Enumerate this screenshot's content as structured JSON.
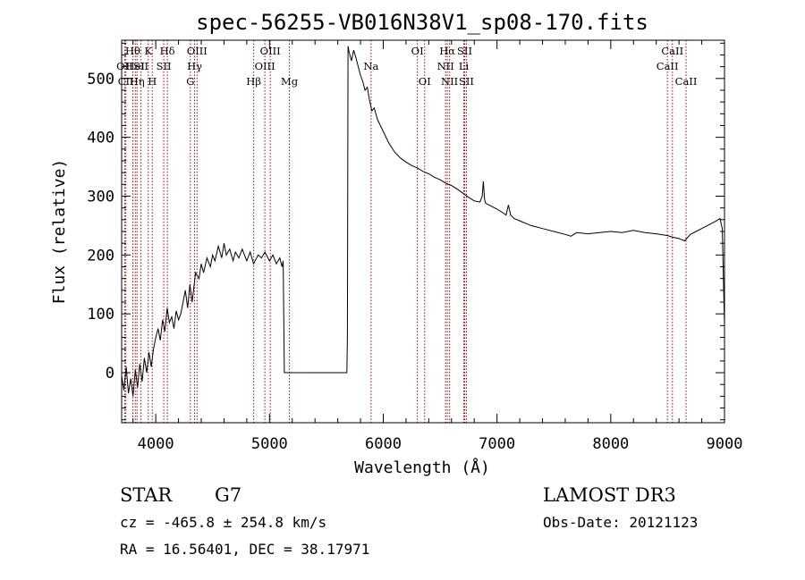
{
  "chart_data": {
    "type": "line",
    "title": "spec-56255-VB016N38V1_sp08-170.fits",
    "xlabel": "Wavelength (Å)",
    "ylabel": "Flux (relative)",
    "xlim": [
      3700,
      9000
    ],
    "ylim": [
      -85,
      565
    ],
    "xticks": [
      4000,
      5000,
      6000,
      7000,
      8000,
      9000
    ],
    "yticks": [
      0,
      100,
      200,
      300,
      400,
      500
    ],
    "spectrum": [
      [
        3700,
        -5
      ],
      [
        3720,
        -30
      ],
      [
        3740,
        10
      ],
      [
        3760,
        -35
      ],
      [
        3780,
        -10
      ],
      [
        3800,
        -40
      ],
      [
        3820,
        5
      ],
      [
        3840,
        -25
      ],
      [
        3860,
        15
      ],
      [
        3880,
        -15
      ],
      [
        3900,
        25
      ],
      [
        3920,
        0
      ],
      [
        3940,
        35
      ],
      [
        3960,
        10
      ],
      [
        3980,
        40
      ],
      [
        4000,
        60
      ],
      [
        4020,
        75
      ],
      [
        4040,
        55
      ],
      [
        4060,
        90
      ],
      [
        4080,
        70
      ],
      [
        4100,
        110
      ],
      [
        4120,
        85
      ],
      [
        4140,
        95
      ],
      [
        4160,
        75
      ],
      [
        4180,
        105
      ],
      [
        4200,
        90
      ],
      [
        4220,
        100
      ],
      [
        4240,
        120
      ],
      [
        4260,
        140
      ],
      [
        4280,
        110
      ],
      [
        4300,
        150
      ],
      [
        4320,
        120
      ],
      [
        4350,
        170
      ],
      [
        4380,
        160
      ],
      [
        4400,
        185
      ],
      [
        4420,
        170
      ],
      [
        4450,
        195
      ],
      [
        4480,
        180
      ],
      [
        4500,
        200
      ],
      [
        4520,
        190
      ],
      [
        4550,
        215
      ],
      [
        4580,
        195
      ],
      [
        4600,
        220
      ],
      [
        4620,
        200
      ],
      [
        4650,
        210
      ],
      [
        4680,
        190
      ],
      [
        4700,
        205
      ],
      [
        4730,
        195
      ],
      [
        4760,
        210
      ],
      [
        4800,
        190
      ],
      [
        4830,
        205
      ],
      [
        4860,
        185
      ],
      [
        4900,
        200
      ],
      [
        4930,
        195
      ],
      [
        4960,
        205
      ],
      [
        5000,
        190
      ],
      [
        5030,
        200
      ],
      [
        5060,
        185
      ],
      [
        5090,
        195
      ],
      [
        5110,
        180
      ],
      [
        5120,
        190
      ],
      [
        5130,
        0
      ],
      [
        5680,
        0
      ],
      [
        5685,
        60
      ],
      [
        5690,
        555
      ],
      [
        5700,
        545
      ],
      [
        5720,
        530
      ],
      [
        5740,
        548
      ],
      [
        5760,
        535
      ],
      [
        5780,
        520
      ],
      [
        5800,
        505
      ],
      [
        5820,
        495
      ],
      [
        5840,
        480
      ],
      [
        5860,
        485
      ],
      [
        5880,
        462
      ],
      [
        5900,
        445
      ],
      [
        5920,
        450
      ],
      [
        5950,
        430
      ],
      [
        6000,
        410
      ],
      [
        6050,
        390
      ],
      [
        6100,
        375
      ],
      [
        6150,
        365
      ],
      [
        6200,
        358
      ],
      [
        6250,
        352
      ],
      [
        6300,
        348
      ],
      [
        6350,
        342
      ],
      [
        6400,
        338
      ],
      [
        6450,
        332
      ],
      [
        6500,
        328
      ],
      [
        6550,
        322
      ],
      [
        6600,
        318
      ],
      [
        6650,
        312
      ],
      [
        6700,
        305
      ],
      [
        6750,
        298
      ],
      [
        6800,
        292
      ],
      [
        6850,
        290
      ],
      [
        6870,
        300
      ],
      [
        6880,
        325
      ],
      [
        6890,
        295
      ],
      [
        6900,
        288
      ],
      [
        6950,
        283
      ],
      [
        7000,
        278
      ],
      [
        7050,
        272
      ],
      [
        7080,
        268
      ],
      [
        7100,
        285
      ],
      [
        7120,
        268
      ],
      [
        7150,
        262
      ],
      [
        7200,
        258
      ],
      [
        7300,
        250
      ],
      [
        7400,
        245
      ],
      [
        7500,
        240
      ],
      [
        7600,
        235
      ],
      [
        7650,
        232
      ],
      [
        7700,
        238
      ],
      [
        7800,
        236
      ],
      [
        7900,
        238
      ],
      [
        8000,
        240
      ],
      [
        8100,
        238
      ],
      [
        8200,
        242
      ],
      [
        8300,
        238
      ],
      [
        8400,
        236
      ],
      [
        8500,
        233
      ],
      [
        8550,
        230
      ],
      [
        8600,
        228
      ],
      [
        8650,
        224
      ],
      [
        8700,
        235
      ],
      [
        8750,
        240
      ],
      [
        8800,
        245
      ],
      [
        8850,
        250
      ],
      [
        8900,
        255
      ],
      [
        8930,
        258
      ],
      [
        8960,
        262
      ],
      [
        8980,
        245
      ],
      [
        9000,
        80
      ]
    ],
    "lines": [
      {
        "label": "Hθ",
        "wave": 3798,
        "row": 0
      },
      {
        "label": "OII",
        "wave": 3727,
        "row": 1
      },
      {
        "label": "CII",
        "wave": 3737,
        "row": 2
      },
      {
        "label": "Hη",
        "wave": 3835,
        "row": 2
      },
      {
        "label": "HeI",
        "wave": 3820,
        "row": 1
      },
      {
        "label": "K",
        "wave": 3934,
        "row": 0
      },
      {
        "label": "SII",
        "wave": 3870,
        "row": 1
      },
      {
        "label": "H",
        "wave": 3969,
        "row": 2
      },
      {
        "label": "Hδ",
        "wave": 4102,
        "row": 0
      },
      {
        "label": "SII",
        "wave": 4070,
        "row": 1
      },
      {
        "label": "OIII",
        "wave": 4363,
        "row": 0
      },
      {
        "label": "Hγ",
        "wave": 4341,
        "row": 1
      },
      {
        "label": "G",
        "wave": 4304,
        "row": 2
      },
      {
        "label": "Hβ",
        "wave": 4861,
        "row": 2
      },
      {
        "label": "OIII",
        "wave": 5007,
        "row": 0
      },
      {
        "label": "OIII",
        "wave": 4959,
        "row": 1
      },
      {
        "label": "Mg",
        "wave": 5175,
        "row": 2
      },
      {
        "label": "Na",
        "wave": 5893,
        "row": 1
      },
      {
        "label": "OI",
        "wave": 6300,
        "row": 0
      },
      {
        "label": "OI",
        "wave": 6364,
        "row": 2
      },
      {
        "label": "Hα",
        "wave": 6563,
        "row": 0
      },
      {
        "label": "NII",
        "wave": 6548,
        "row": 1
      },
      {
        "label": "NII",
        "wave": 6583,
        "row": 2
      },
      {
        "label": "SII",
        "wave": 6716,
        "row": 0
      },
      {
        "label": "Li",
        "wave": 6708,
        "row": 1
      },
      {
        "label": "SII",
        "wave": 6731,
        "row": 2
      },
      {
        "label": "CaII",
        "wave": 8542,
        "row": 0
      },
      {
        "label": "CaII",
        "wave": 8498,
        "row": 1
      },
      {
        "label": "CaII",
        "wave": 8662,
        "row": 2
      }
    ]
  },
  "info": {
    "object_class": "STAR",
    "subclass": "G7",
    "survey": "LAMOST DR3",
    "redshift": "cz = -465.8 ± 254.8 km/s",
    "obs_date": "Obs-Date: 20121123",
    "coords": "RA =  16.56401, DEC =  38.17971"
  },
  "colors": {
    "spectrum": "#000000",
    "line_marker": "#b30000",
    "axis": "#000000"
  }
}
